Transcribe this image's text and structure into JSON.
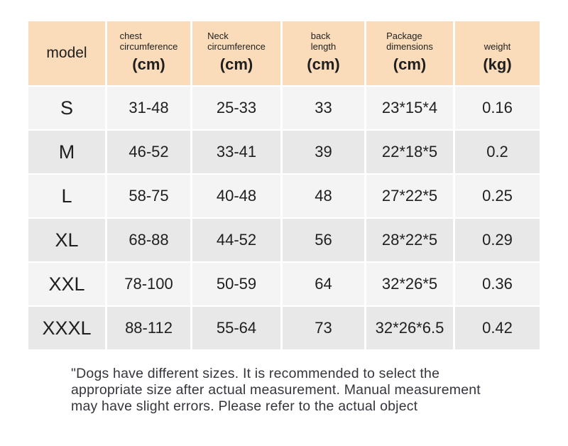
{
  "colors": {
    "header_bg": "#fadcba",
    "row_light": "#f4f4f4",
    "row_dark": "#e8e8e8",
    "text": "#1f1f1f",
    "note_text": "#35353d"
  },
  "table": {
    "header": {
      "model": "model",
      "cols": [
        {
          "line1": "chest",
          "line2": "circumference",
          "unit": "(cm)"
        },
        {
          "line1": "Neck",
          "line2": "circumference",
          "unit": "(cm)"
        },
        {
          "line1": "back",
          "line2": "length",
          "unit": "(cm)"
        },
        {
          "line1": "Package",
          "line2": "dimensions",
          "unit": "(cm)"
        },
        {
          "line1": "",
          "line2": "weight",
          "unit": "(kg)"
        }
      ]
    },
    "rows": [
      {
        "model": "S",
        "values": [
          "31-48",
          "25-33",
          "33",
          "23*15*4",
          "0.16"
        ]
      },
      {
        "model": "M",
        "values": [
          "46-52",
          "33-41",
          "39",
          "22*18*5",
          "0.2"
        ]
      },
      {
        "model": "L",
        "values": [
          "58-75",
          "40-48",
          "48",
          "27*22*5",
          "0.25"
        ]
      },
      {
        "model": "XL",
        "values": [
          "68-88",
          "44-52",
          "56",
          "28*22*5",
          "0.29"
        ]
      },
      {
        "model": "XXL",
        "values": [
          "78-100",
          "50-59",
          "64",
          "32*26*5",
          "0.36"
        ]
      },
      {
        "model": "XXXL",
        "values": [
          "88-112",
          "55-64",
          "73",
          "32*26*6.5",
          "0.42"
        ]
      }
    ]
  },
  "note": {
    "lines": [
      "\"Dogs have different sizes. It is recommended to select the",
      "appropriate size after actual measurement. Manual measurement",
      "may have slight errors. Please refer to the actual object"
    ]
  }
}
